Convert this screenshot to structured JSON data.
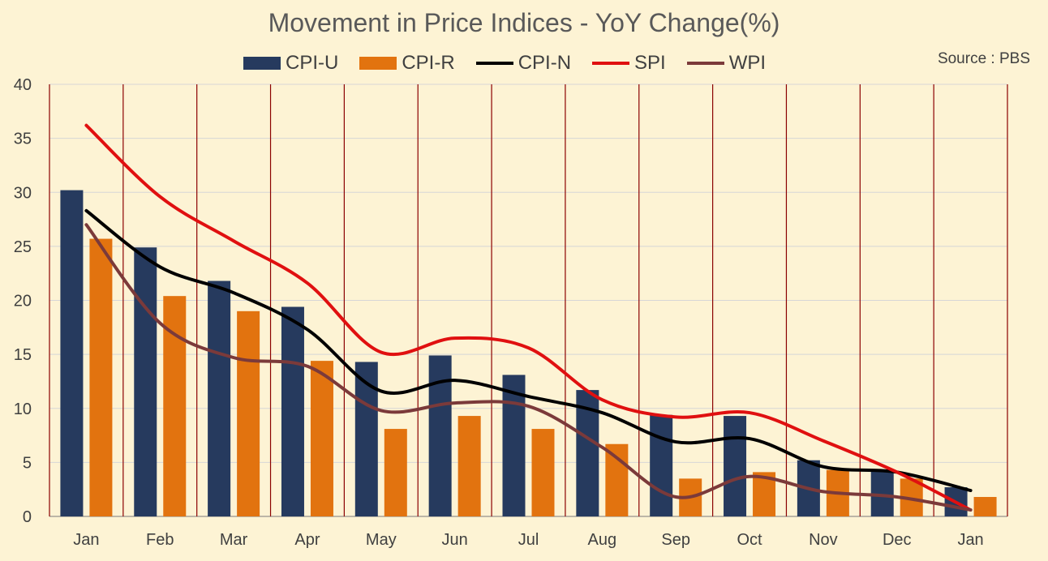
{
  "title": "Movement in Price Indices - YoY Change(%)",
  "source": "Source : PBS",
  "colors": {
    "background": "#fdf3d4",
    "grid_h": "#d6d6d6",
    "grid_v": "#8b0000",
    "cpi_u": "#263a5e",
    "cpi_r": "#e2730f",
    "cpi_n": "#000000",
    "spi": "#e01010",
    "wpi": "#7b3a3a"
  },
  "chart_data": {
    "type": "bar",
    "categories": [
      "Jan",
      "Feb",
      "Mar",
      "Apr",
      "May",
      "Jun",
      "Jul",
      "Aug",
      "Sep",
      "Oct",
      "Nov",
      "Dec",
      "Jan"
    ],
    "ylim": [
      0,
      40
    ],
    "yticks": [
      0,
      5,
      10,
      15,
      20,
      25,
      30,
      35,
      40
    ],
    "grid": true,
    "legend_position": "top",
    "series": [
      {
        "name": "CPI-U",
        "type": "bar",
        "color": "#263a5e",
        "values": [
          30.2,
          24.9,
          21.8,
          19.4,
          14.3,
          14.9,
          13.1,
          11.7,
          9.4,
          9.3,
          5.2,
          4.3,
          2.7
        ]
      },
      {
        "name": "CPI-R",
        "type": "bar",
        "color": "#e2730f",
        "values": [
          25.7,
          20.4,
          19.0,
          14.4,
          8.1,
          9.3,
          8.1,
          6.7,
          3.5,
          4.1,
          4.3,
          3.5,
          1.8
        ]
      },
      {
        "name": "CPI-N",
        "type": "line",
        "color": "#000000",
        "values": [
          28.3,
          23.1,
          20.7,
          17.3,
          11.6,
          12.6,
          11.1,
          9.6,
          6.9,
          7.2,
          4.6,
          4.1,
          2.4
        ]
      },
      {
        "name": "SPI",
        "type": "line",
        "color": "#e01010",
        "values": [
          36.2,
          29.6,
          25.5,
          21.6,
          15.2,
          16.5,
          15.6,
          10.8,
          9.2,
          9.6,
          7.0,
          4.1,
          0.6
        ]
      },
      {
        "name": "WPI",
        "type": "line",
        "color": "#7b3a3a",
        "values": [
          27.0,
          17.9,
          14.7,
          13.9,
          9.8,
          10.5,
          10.2,
          6.4,
          1.8,
          3.7,
          2.3,
          1.8,
          0.6
        ]
      }
    ]
  }
}
